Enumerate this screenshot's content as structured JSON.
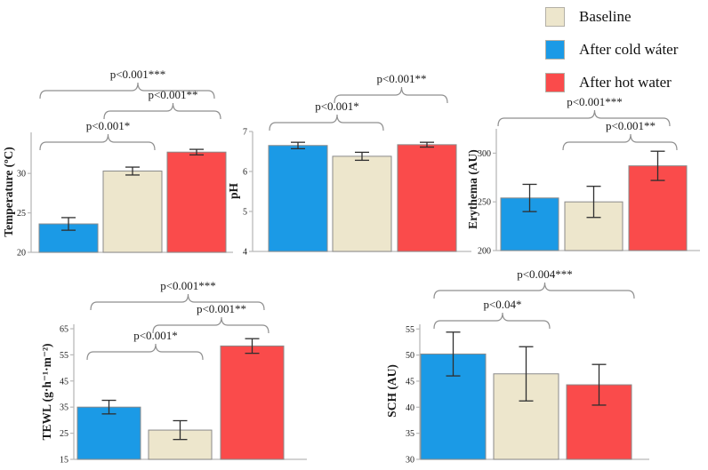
{
  "figure": {
    "background": "#ffffff",
    "legend": {
      "items": [
        {
          "label": "Baseline",
          "color": "#EDE6CC"
        },
        {
          "label": "After cold wáter",
          "color": "#1B9AE6"
        },
        {
          "label": "After hot water",
          "color": "#FA4B4B"
        }
      ]
    },
    "colors": {
      "axis": "#b9b9b9",
      "error_bar": "#2f2f2f",
      "bracket": "#8f8f8f",
      "bar_stroke": "#8a8a8a"
    }
  },
  "chart_data": [
    {
      "type": "bar",
      "id": "temperature",
      "ylabel": "Temperature (ºC)",
      "categories": [
        "After cold water",
        "Baseline",
        "After hot water"
      ],
      "values": [
        23.6,
        30.3,
        32.7
      ],
      "errors": [
        0.8,
        0.5,
        0.35
      ],
      "bar_colors": [
        "#1B9AE6",
        "#EDE6CC",
        "#FA4B4B"
      ],
      "ylim": [
        20,
        35.2
      ],
      "yticks": [
        20,
        25,
        30
      ],
      "grid": false,
      "significance": [
        {
          "label": "p<0.001*",
          "from": 0,
          "to": 1
        },
        {
          "label": "p<0.001**",
          "from": 1,
          "to": 2
        },
        {
          "label": "p<0.001***",
          "from": 0,
          "to": 2
        }
      ]
    },
    {
      "type": "bar",
      "id": "ph",
      "ylabel": "pH",
      "categories": [
        "After cold water",
        "Baseline",
        "After hot water"
      ],
      "values": [
        6.65,
        6.38,
        6.67
      ],
      "errors": [
        0.08,
        0.1,
        0.06
      ],
      "bar_colors": [
        "#1B9AE6",
        "#EDE6CC",
        "#FA4B4B"
      ],
      "ylim": [
        4,
        7
      ],
      "yticks": [
        4,
        5,
        6,
        7
      ],
      "grid": false,
      "significance": [
        {
          "label": "p<0.001*",
          "from": 0,
          "to": 1
        },
        {
          "label": "p<0.001**",
          "from": 1,
          "to": 2
        }
      ]
    },
    {
      "type": "bar",
      "id": "erythema",
      "ylabel": "Erythema (AU)",
      "categories": [
        "After cold water",
        "Baseline",
        "After hot water"
      ],
      "values": [
        254,
        250,
        287
      ],
      "errors": [
        14,
        16,
        15
      ],
      "bar_colors": [
        "#1B9AE6",
        "#EDE6CC",
        "#FA4B4B"
      ],
      "ylim": [
        200,
        325
      ],
      "yticks": [
        200,
        250,
        300
      ],
      "grid": false,
      "significance": [
        {
          "label": "p<0.001***",
          "from": 0,
          "to": 2
        },
        {
          "label": "p<0.001**",
          "from": 1,
          "to": 2
        }
      ]
    },
    {
      "type": "bar",
      "id": "tewl",
      "ylabel": "TEWL (g·h⁻¹·m⁻²)",
      "categories": [
        "After cold water",
        "Baseline",
        "After hot water"
      ],
      "values": [
        35,
        26.2,
        58.4
      ],
      "errors": [
        2.6,
        3.6,
        2.8
      ],
      "bar_colors": [
        "#1B9AE6",
        "#EDE6CC",
        "#FA4B4B"
      ],
      "ylim": [
        15,
        66.7
      ],
      "yticks": [
        15,
        25,
        35,
        45,
        55,
        65
      ],
      "grid": false,
      "significance": [
        {
          "label": "p<0.001*",
          "from": 0,
          "to": 1
        },
        {
          "label": "p<0.001**",
          "from": 1,
          "to": 2
        },
        {
          "label": "p<0.001***",
          "from": 0,
          "to": 2
        }
      ]
    },
    {
      "type": "bar",
      "id": "sch",
      "ylabel": "SCH (AU)",
      "categories": [
        "After cold water",
        "Baseline",
        "After hot water"
      ],
      "values": [
        50.2,
        46.4,
        44.3
      ],
      "errors": [
        4.2,
        5.2,
        3.9
      ],
      "bar_colors": [
        "#1B9AE6",
        "#EDE6CC",
        "#FA4B4B"
      ],
      "ylim": [
        30,
        55.9
      ],
      "yticks": [
        30,
        35,
        40,
        45,
        50,
        55
      ],
      "grid": false,
      "significance": [
        {
          "label": "p<0.04*",
          "from": 0,
          "to": 1
        },
        {
          "label": "p<0.004***",
          "from": 0,
          "to": 2
        }
      ]
    }
  ]
}
